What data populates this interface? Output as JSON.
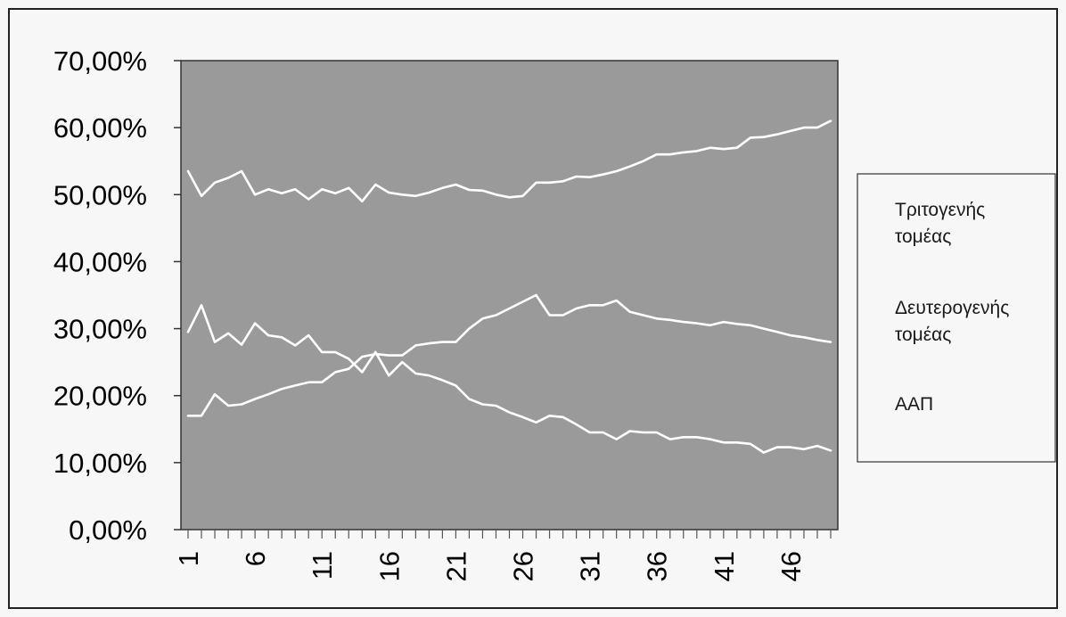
{
  "chart_data": {
    "type": "line",
    "title": "",
    "xlabel": "",
    "ylabel": "",
    "x": [
      1,
      2,
      3,
      4,
      5,
      6,
      7,
      8,
      9,
      10,
      11,
      12,
      13,
      14,
      15,
      16,
      17,
      18,
      19,
      20,
      21,
      22,
      23,
      24,
      25,
      26,
      27,
      28,
      29,
      30,
      31,
      32,
      33,
      34,
      35,
      36,
      37,
      38,
      39,
      40,
      41,
      42,
      43,
      44,
      45,
      46,
      47,
      48,
      49
    ],
    "x_tick_labels": [
      "1",
      "6",
      "11",
      "16",
      "21",
      "26",
      "31",
      "36",
      "41",
      "46"
    ],
    "y_tick_labels": [
      "0,00%",
      "10,00%",
      "20,00%",
      "30,00%",
      "40,00%",
      "50,00%",
      "60,00%",
      "70,00%"
    ],
    "ylim": [
      0,
      70
    ],
    "y_unit": "%",
    "grid": false,
    "legend_position": "right",
    "colors": {
      "plot_background": "#9a9a9a",
      "line": "#ffffff",
      "page": "#f7f7f7"
    },
    "series": [
      {
        "name": "Τριτογενής τομέας",
        "values": [
          53.5,
          49.8,
          51.8,
          52.5,
          53.5,
          50.0,
          50.8,
          50.2,
          50.8,
          49.3,
          50.8,
          50.2,
          51.0,
          49.0,
          51.5,
          50.3,
          50.0,
          49.8,
          50.3,
          51.0,
          51.5,
          50.7,
          50.6,
          50.0,
          49.6,
          49.8,
          51.8,
          51.8,
          52.0,
          52.7,
          52.6,
          53.0,
          53.5,
          54.2,
          55.0,
          56.0,
          56.0,
          56.3,
          56.5,
          57.0,
          56.8,
          57.0,
          58.5,
          58.6,
          59.0,
          59.5,
          60.0,
          60.0,
          61.0
        ]
      },
      {
        "name": "Δευτερογενής τομέας",
        "values": [
          17.0,
          17.0,
          20.2,
          18.5,
          18.7,
          19.5,
          20.2,
          21.0,
          21.5,
          22.0,
          22.0,
          23.5,
          24.0,
          25.8,
          26.2,
          26.0,
          26.0,
          27.5,
          27.8,
          28.0,
          28.0,
          30.0,
          31.5,
          32.0,
          33.0,
          34.0,
          35.0,
          32.0,
          32.0,
          33.0,
          33.5,
          33.5,
          34.2,
          32.5,
          32.0,
          31.5,
          31.3,
          31.0,
          30.8,
          30.5,
          31.0,
          30.7,
          30.5,
          30.0,
          29.5,
          29.0,
          28.7,
          28.3,
          28.0
        ]
      },
      {
        "name": "ΑΑΠ",
        "values": [
          29.5,
          33.5,
          28.0,
          29.3,
          27.6,
          30.8,
          29.0,
          28.7,
          27.5,
          29.0,
          26.5,
          26.5,
          25.5,
          23.5,
          26.5,
          23.0,
          25.0,
          23.3,
          23.0,
          22.3,
          21.5,
          19.5,
          18.7,
          18.5,
          17.5,
          16.8,
          16.0,
          17.0,
          16.8,
          15.7,
          14.5,
          14.5,
          13.5,
          14.7,
          14.5,
          14.5,
          13.5,
          13.8,
          13.8,
          13.5,
          13.0,
          13.0,
          12.8,
          11.5,
          12.3,
          12.3,
          12.0,
          12.5,
          11.8
        ]
      }
    ]
  }
}
